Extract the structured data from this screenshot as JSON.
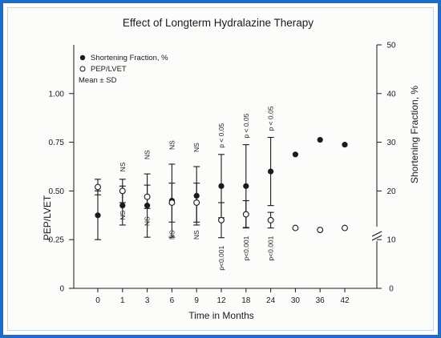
{
  "chart_data": {
    "type": "scatter",
    "title": "Effect of Longterm Hydralazine Therapy",
    "xlabel": "Time in Months",
    "ylabel_left": "PEP/LVET",
    "ylabel_right": "Shortening Fraction, %",
    "x_ticks": [
      "0",
      "1",
      "3",
      "6",
      "9",
      "12",
      "18",
      "24",
      "30",
      "36",
      "42"
    ],
    "y_left_ticks": [
      "0",
      "0.25",
      "0.50",
      "0.75",
      "1.00"
    ],
    "y_left_range": [
      0,
      1.25
    ],
    "y_right_ticks": [
      "0",
      "10",
      "20",
      "30",
      "40",
      "50"
    ],
    "y_right_range": [
      0,
      50
    ],
    "legend": [
      "Shortening Fraction, %",
      "PEP/LVET",
      "Mean ± SD"
    ],
    "series": [
      {
        "name": "Shortening Fraction, %",
        "marker": "filled",
        "x": [
          "0",
          "1",
          "3",
          "6",
          "9",
          "12",
          "18",
          "24",
          "30",
          "36",
          "42"
        ],
        "mean": [
          15,
          17,
          17,
          18,
          19,
          21,
          21,
          24,
          27.5,
          30.5,
          29.5
        ],
        "sd": [
          5,
          4,
          6.5,
          7.5,
          6,
          6.5,
          8.5,
          7,
          null,
          null,
          null
        ]
      },
      {
        "name": "PEP/LVET",
        "marker": "open",
        "x": [
          "0",
          "1",
          "3",
          "6",
          "9",
          "12",
          "18",
          "24",
          "30",
          "36",
          "42"
        ],
        "mean": [
          0.52,
          0.5,
          0.47,
          0.44,
          0.44,
          0.35,
          0.38,
          0.35,
          0.31,
          0.3,
          0.31
        ],
        "sd": [
          0.04,
          0.06,
          0.06,
          0.1,
          0.1,
          0.09,
          0.07,
          0.04,
          null,
          null,
          null
        ]
      }
    ],
    "annotations_upper": [
      "",
      "NS",
      "NS",
      "NS",
      "NS",
      "p < 0.05",
      "p < 0.05",
      "p < 0.05",
      "",
      "",
      ""
    ],
    "annotations_lower": [
      "",
      "NS",
      "NS",
      "NS",
      "NS",
      "p<0.001",
      "p<0.001",
      "p<0.001",
      "",
      "",
      ""
    ],
    "colors": {
      "frame": "#1f6cc4",
      "ink": "#1a1a1a"
    }
  }
}
